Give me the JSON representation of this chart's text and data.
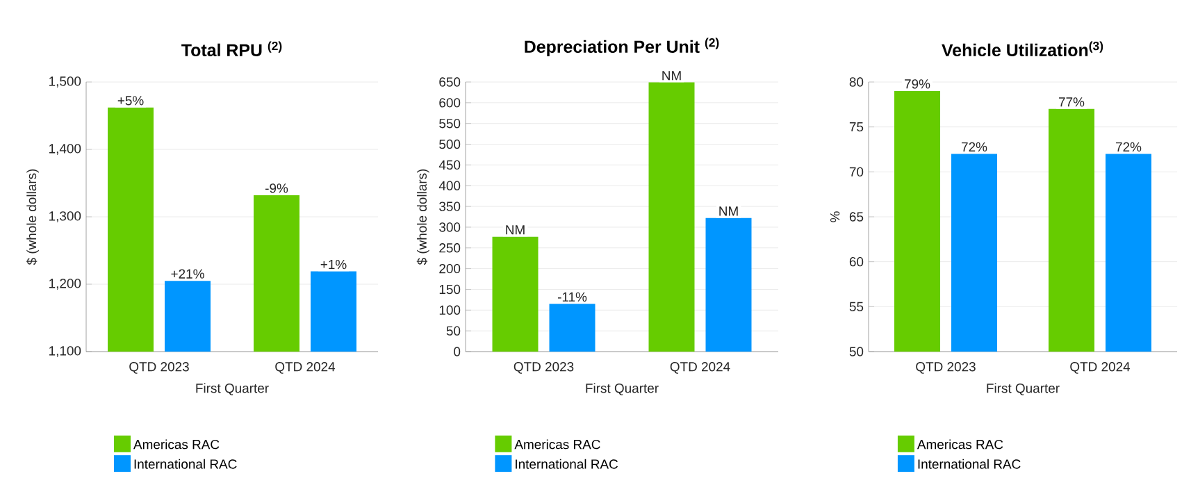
{
  "chart_data": [
    {
      "type": "bar",
      "title": "Total RPU $^{(2)}$",
      "xlabel": "First Quarter",
      "ylabel": "$ (whole dollars)",
      "categories": [
        "QTD 2023",
        "QTD 2024"
      ],
      "series": [
        {
          "name": "Americas RAC",
          "color": "#66cc00",
          "values": [
            1462,
            1332
          ]
        },
        {
          "name": "International RAC",
          "color": "#0096ff",
          "values": [
            1205,
            1219
          ]
        }
      ],
      "annotations": [
        {
          "text": "+5%",
          "x": "QTD 2023",
          "y": 1462
        },
        {
          "text": "-9%",
          "x": "QTD 2024",
          "y": 1332
        },
        {
          "text": "+21%",
          "x": "QTD 2023",
          "y": 1205
        },
        {
          "text": "+1%",
          "x": "QTD 2024",
          "y": 1219
        }
      ],
      "ylim": [
        1100,
        1500
      ],
      "yticks": [
        {
          "value": 1100,
          "label": "1,100"
        },
        {
          "value": 1200,
          "label": "1,200"
        },
        {
          "value": 1300,
          "label": "1,300"
        },
        {
          "value": 1400,
          "label": "1,400"
        },
        {
          "value": 1500,
          "label": "1,500"
        }
      ],
      "grid": "y",
      "legend": "bottom"
    },
    {
      "type": "bar",
      "title": "Depreciation Per Unit $^{(2)}$",
      "xlabel": "First Quarter",
      "ylabel": "$ (whole dollars)",
      "categories": [
        "QTD 2023",
        "QTD 2024"
      ],
      "series": [
        {
          "name": "Americas RAC",
          "color": "#66cc00",
          "values": [
            277,
            649
          ]
        },
        {
          "name": "International RAC",
          "color": "#0096ff",
          "values": [
            115,
            322
          ]
        }
      ],
      "annotations": [
        {
          "text": "NM",
          "x": "QTD 2023",
          "y": 277
        },
        {
          "text": "NM",
          "x": "QTD 2024",
          "y": 649
        },
        {
          "text": "-11%",
          "x": "QTD 2023",
          "y": 115
        },
        {
          "text": "NM",
          "x": "QTD 2024",
          "y": 322
        }
      ],
      "ylim": [
        0,
        650
      ],
      "yticks": [
        0,
        50,
        100,
        150,
        200,
        250,
        300,
        350,
        400,
        450,
        500,
        550,
        600,
        650
      ],
      "grid": "y",
      "legend": "bottom"
    },
    {
      "type": "bar",
      "title": "Vehicle Utilization$^{(3)}$",
      "xlabel": "First Quarter",
      "ylabel": "%",
      "categories": [
        "QTD 2023",
        "QTD 2024"
      ],
      "series": [
        {
          "name": "Americas RAC",
          "color": "#66cc00",
          "values": [
            79,
            77
          ],
          "value_labels": [
            "79%",
            "77%"
          ]
        },
        {
          "name": "International RAC",
          "color": "#0096ff",
          "values": [
            72,
            72
          ],
          "value_labels": [
            "72%",
            "72%"
          ]
        }
      ],
      "ylim": [
        50,
        80
      ],
      "yticks": [
        50,
        55,
        60,
        65,
        70,
        75,
        80
      ],
      "grid": "y",
      "legend": "bottom"
    }
  ]
}
